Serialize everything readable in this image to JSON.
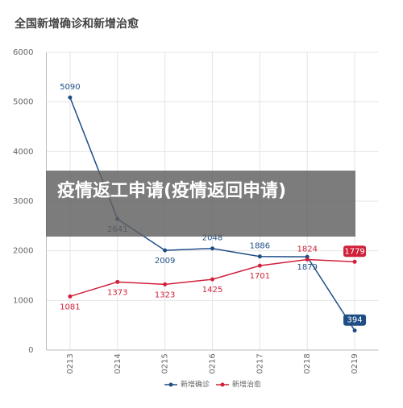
{
  "chart_data": {
    "type": "line",
    "title": "全国新增确诊和新增治愈",
    "categories": [
      "0213",
      "0214",
      "0215",
      "0216",
      "0217",
      "0218",
      "0219"
    ],
    "series": [
      {
        "name": "新增确诊",
        "color": "#1f4e87",
        "values": [
          5090,
          2641,
          2009,
          2048,
          1886,
          1879,
          394
        ]
      },
      {
        "name": "新增治愈",
        "color": "#d0213b",
        "values": [
          1081,
          1373,
          1323,
          1425,
          1701,
          1824,
          1779
        ]
      }
    ],
    "ylim": [
      0,
      6000
    ],
    "yticks": [
      0,
      1000,
      2000,
      3000,
      4000,
      5000,
      6000
    ],
    "grid": true,
    "legend": "bottom"
  },
  "overlay": {
    "text": "疫情返工申请(疫情返回申请)"
  }
}
